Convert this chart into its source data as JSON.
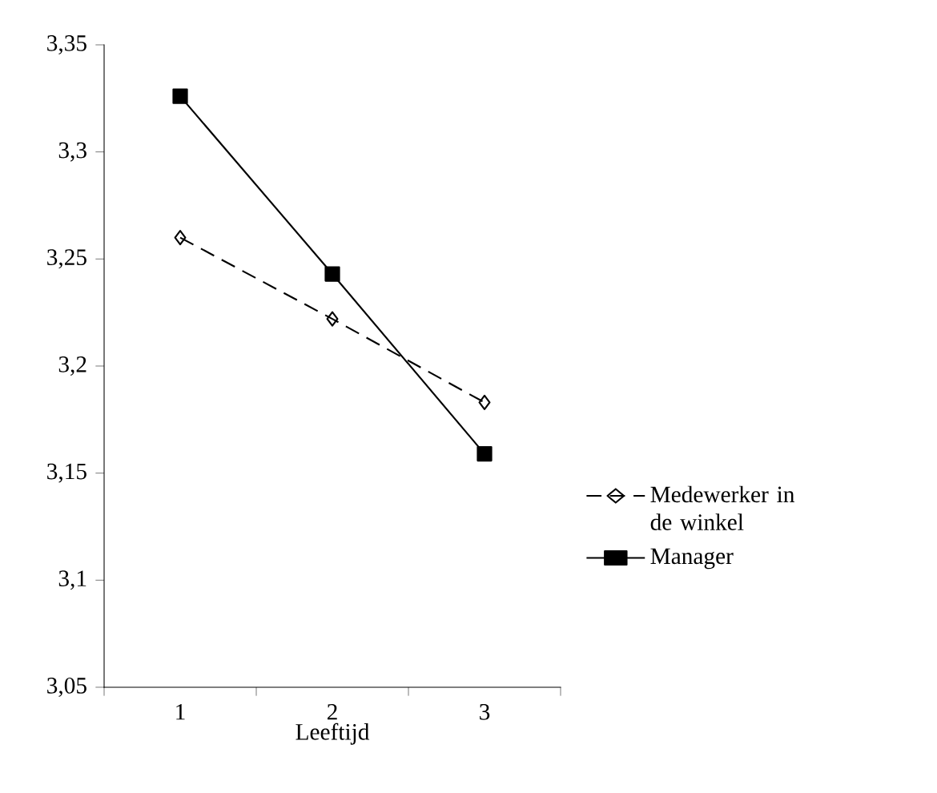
{
  "chart_data": {
    "type": "line",
    "xlabel": "Leeftijd",
    "categories": [
      "1",
      "2",
      "3"
    ],
    "series": [
      {
        "name": "Medewerker in de winkel",
        "color": "#000000",
        "values": [
          3.26,
          3.222,
          3.183
        ],
        "marker": "diamond",
        "line_style": "dashed"
      },
      {
        "name": "Manager",
        "color": "#000000",
        "values": [
          3.326,
          3.243,
          3.159
        ],
        "marker": "square",
        "line_style": "solid"
      }
    ],
    "ylim": [
      3.05,
      3.35
    ],
    "yticks": [
      {
        "value": 3.05,
        "label": "3,05"
      },
      {
        "value": 3.1,
        "label": "3,1"
      },
      {
        "value": 3.15,
        "label": "3,15"
      },
      {
        "value": 3.2,
        "label": "3,2"
      },
      {
        "value": 3.25,
        "label": "3,25"
      },
      {
        "value": 3.3,
        "label": "3,3"
      },
      {
        "value": 3.35,
        "label": "3,35"
      }
    ],
    "legend": "right",
    "grid": false
  }
}
